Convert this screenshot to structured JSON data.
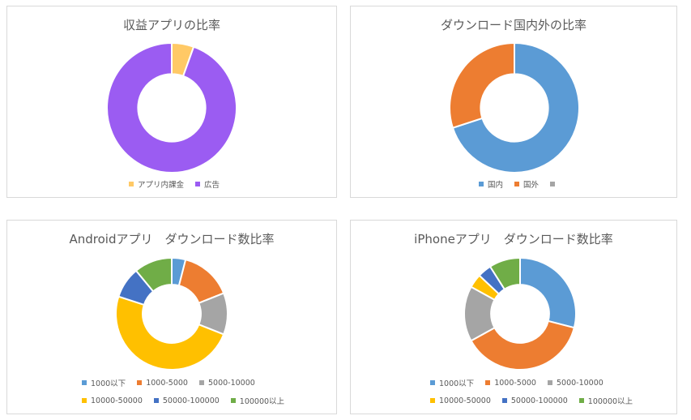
{
  "chart_data": [
    {
      "type": "pie",
      "subtype": "donut",
      "title": "収益アプリの比率",
      "categories": [
        "アプリ内課金",
        "広告"
      ],
      "values": [
        5.5,
        94.5
      ],
      "colors": [
        "#ffc966",
        "#9b5cf2"
      ],
      "legend_position": "bottom",
      "legend_rows": [
        [
          0,
          1
        ]
      ]
    },
    {
      "type": "pie",
      "subtype": "donut",
      "title": "ダウンロード国内外の比率",
      "categories": [
        "国内",
        "国外",
        ""
      ],
      "values": [
        70,
        30,
        0
      ],
      "colors": [
        "#5b9bd5",
        "#ed7d31",
        "#a5a5a5"
      ],
      "legend_position": "bottom",
      "legend_rows": [
        [
          0,
          1,
          2
        ]
      ]
    },
    {
      "type": "pie",
      "subtype": "donut",
      "title": "Androidアプリ　ダウンロード数比率",
      "categories": [
        "1000以下",
        "1000-5000",
        "5000-10000",
        "10000-50000",
        "50000-100000",
        "100000以上"
      ],
      "values": [
        4,
        15,
        12,
        49,
        9,
        11
      ],
      "colors": [
        "#5b9bd5",
        "#ed7d31",
        "#a5a5a5",
        "#ffc000",
        "#4472c4",
        "#70ad47"
      ],
      "legend_position": "bottom",
      "legend_rows": [
        [
          0,
          1,
          2
        ],
        [
          3,
          4,
          5
        ]
      ]
    },
    {
      "type": "pie",
      "subtype": "donut",
      "title": "iPhoneアプリ　ダウンロード数比率",
      "categories": [
        "1000以下",
        "1000-5000",
        "5000-10000",
        "10000-50000",
        "50000-100000",
        "100000以上"
      ],
      "values": [
        29,
        38,
        16,
        4,
        4,
        9
      ],
      "colors": [
        "#5b9bd5",
        "#ed7d31",
        "#a5a5a5",
        "#ffc000",
        "#4472c4",
        "#70ad47"
      ],
      "legend_position": "bottom",
      "legend_rows": [
        [
          0,
          1,
          2
        ],
        [
          3,
          4,
          5
        ]
      ]
    }
  ]
}
